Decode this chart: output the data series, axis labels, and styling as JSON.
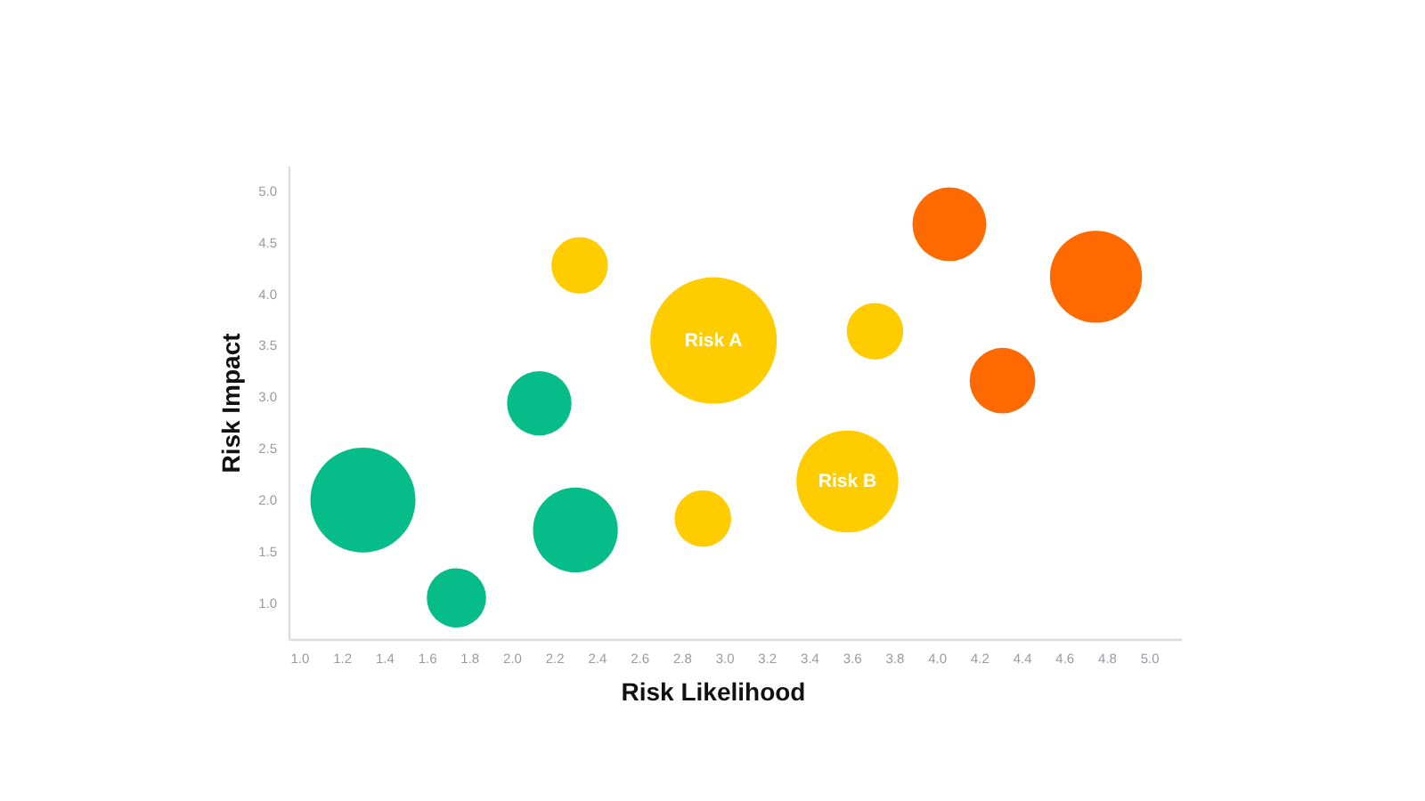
{
  "chart_data": {
    "type": "bubble",
    "xlabel": "Risk Likelihood",
    "ylabel": "Risk Impact",
    "xlim": [
      0.95,
      5.15
    ],
    "ylim": [
      0.65,
      5.25
    ],
    "xticks": [
      {
        "value": 1,
        "label": "1.0"
      },
      1.2,
      1.4,
      1.6,
      1.8,
      {
        "value": 2,
        "label": "2.0"
      },
      2.2,
      2.4,
      2.6,
      2.8,
      {
        "value": 3,
        "label": "3.0"
      },
      3.2,
      3.4,
      3.6,
      3.8,
      {
        "value": 4,
        "label": "4.0"
      },
      4.2,
      4.4,
      4.6,
      4.8,
      {
        "value": 5,
        "label": "5.0"
      }
    ],
    "yticks": [
      {
        "value": 1,
        "label": "1.0"
      },
      1.5,
      {
        "value": 2,
        "label": "2.0"
      },
      2.5,
      {
        "value": 3,
        "label": "3.0"
      },
      3.5,
      {
        "value": 4,
        "label": "4.0"
      },
      4.5,
      {
        "value": 5,
        "label": "5.0"
      }
    ],
    "series": [
      {
        "color": "#06bd8a",
        "x": [
          1.3,
          1.74,
          2.3,
          2.13
        ],
        "values": [
          2.0,
          1.05,
          1.71,
          2.94
        ],
        "sizes": [
          0.69,
          0.22,
          0.45,
          0.26
        ]
      },
      {
        "color": "#ffcc00",
        "x": [
          2.32,
          2.95,
          2.9,
          3.58,
          3.71
        ],
        "values": [
          4.28,
          3.55,
          1.82,
          2.18,
          3.64
        ],
        "sizes": [
          0.2,
          1,
          0.2,
          0.65,
          0.2
        ]
      },
      {
        "color": "#ff6a00",
        "x": [
          4.06,
          4.75,
          4.31
        ],
        "values": [
          4.68,
          4.17,
          3.16
        ],
        "sizes": [
          0.34,
          0.53,
          0.27
        ]
      }
    ],
    "annotations": [
      {
        "text": "Risk A",
        "x": 2.95,
        "y": 3.55
      },
      {
        "text": "Risk B",
        "x": 3.58,
        "y": 2.18
      }
    ],
    "legend": false
  }
}
